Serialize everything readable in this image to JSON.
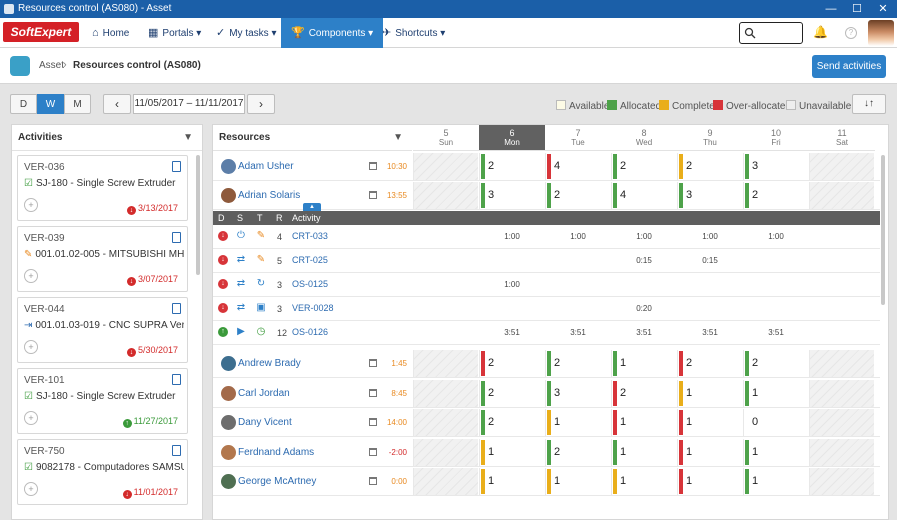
{
  "window": {
    "title": "Resources control (AS080) - Asset",
    "minimize": "—",
    "maximize": "☐",
    "close": "✕"
  },
  "nav": {
    "logo": "SoftExpert",
    "items": [
      {
        "label": "Home",
        "icon": "⌂"
      },
      {
        "label": "Portals ▾",
        "icon": "▦"
      },
      {
        "label": "My tasks ▾",
        "icon": "✓"
      },
      {
        "label": "Components ▾",
        "icon": "🏆"
      },
      {
        "label": "Shortcuts ▾",
        "icon": "✈"
      }
    ]
  },
  "breadcrumb": {
    "parent": "Asset",
    "separator": "›",
    "page": "Resources control (AS080)"
  },
  "actions": {
    "send": "Send activities"
  },
  "toolbar": {
    "views": [
      "D",
      "W",
      "M"
    ],
    "prev": "‹",
    "next": "›",
    "date_range": "11/05/2017 – 11/11/2017",
    "sort": "↓↑"
  },
  "legend": [
    {
      "label": "Available",
      "color": "#fdfbe6"
    },
    {
      "label": "Allocated",
      "color": "#4ea24a"
    },
    {
      "label": "Complete",
      "color": "#e9ae1a"
    },
    {
      "label": "Over-allocated",
      "color": "#d73439"
    },
    {
      "label": "Unavailable",
      "color": "#eeeeee"
    }
  ],
  "activities": {
    "title": "Activities",
    "cards": [
      {
        "id": "VER-036",
        "name": "SJ-180 - Single Screw Extruder",
        "type": "check",
        "date": "3/13/2017",
        "status": "late"
      },
      {
        "id": "VER-039",
        "name": "001.01.02-005 - MITSUBISHI MH-80D",
        "type": "tool",
        "date": "3/07/2017",
        "status": "late"
      },
      {
        "id": "VER-044",
        "name": "001.01.03-019 - CNC SUPRA Vertic...",
        "type": "tree",
        "date": "5/30/2017",
        "status": "late"
      },
      {
        "id": "VER-101",
        "name": "SJ-180 - Single Screw Extruder",
        "type": "check",
        "date": "11/27/2017",
        "status": "ok"
      },
      {
        "id": "VER-750",
        "name": "9082178 - Computadores SAMSUNG",
        "type": "check",
        "date": "11/01/2017",
        "status": "late"
      }
    ]
  },
  "resources": {
    "title": "Resources",
    "days": [
      {
        "num": "5",
        "name": "Sun"
      },
      {
        "num": "6",
        "name": "Mon"
      },
      {
        "num": "7",
        "name": "Tue"
      },
      {
        "num": "8",
        "name": "Wed"
      },
      {
        "num": "9",
        "name": "Thu"
      },
      {
        "num": "10",
        "name": "Fri"
      },
      {
        "num": "11",
        "name": "Sat"
      }
    ],
    "top_rows": [
      {
        "name": "Adam Usher",
        "hours": "10:30",
        "cells": [
          null,
          {
            "v": "2",
            "c": "g"
          },
          {
            "v": "4",
            "c": "r"
          },
          {
            "v": "2",
            "c": "g"
          },
          {
            "v": "2",
            "c": "y"
          },
          {
            "v": "3",
            "c": "g"
          },
          null
        ]
      },
      {
        "name": "Adrian Solaris",
        "hours": "13:55",
        "cells": [
          null,
          {
            "v": "3",
            "c": "g"
          },
          {
            "v": "2",
            "c": "g"
          },
          {
            "v": "4",
            "c": "g"
          },
          {
            "v": "3",
            "c": "g"
          },
          {
            "v": "2",
            "c": "g"
          },
          null
        ]
      }
    ],
    "sub_header": {
      "d": "D",
      "s": "S",
      "t": "T",
      "r": "R",
      "activity": "Activity"
    },
    "sub_rows": [
      {
        "r": "4",
        "activity": "CRT-033",
        "times": [
          "",
          "1:00",
          "1:00",
          "1:00",
          "1:00",
          "1:00",
          ""
        ]
      },
      {
        "r": "5",
        "activity": "CRT-025",
        "times": [
          "",
          "",
          "",
          "0:15",
          "0:15",
          "",
          ""
        ]
      },
      {
        "r": "3",
        "activity": "OS-0125",
        "times": [
          "",
          "1:00",
          "",
          "",
          "",
          "",
          ""
        ]
      },
      {
        "r": "3",
        "activity": "VER-0028",
        "times": [
          "",
          "",
          "",
          "0:20",
          "",
          "",
          ""
        ]
      },
      {
        "r": "12",
        "activity": "OS-0126",
        "times": [
          "",
          "3:51",
          "3:51",
          "3:51",
          "3:51",
          "3:51",
          ""
        ]
      }
    ],
    "bottom_rows": [
      {
        "name": "Andrew Brady",
        "hours": "1:45",
        "cells": [
          null,
          {
            "v": "2",
            "c": "r"
          },
          {
            "v": "2",
            "c": "g"
          },
          {
            "v": "1",
            "c": "g"
          },
          {
            "v": "2",
            "c": "r"
          },
          {
            "v": "2",
            "c": "g"
          },
          null
        ]
      },
      {
        "name": "Carl Jordan",
        "hours": "8:45",
        "cells": [
          null,
          {
            "v": "2",
            "c": "g"
          },
          {
            "v": "3",
            "c": "g"
          },
          {
            "v": "2",
            "c": "r"
          },
          {
            "v": "1",
            "c": "y"
          },
          {
            "v": "1",
            "c": "g"
          },
          null
        ]
      },
      {
        "name": "Dany Vicent",
        "hours": "14:00",
        "cells": [
          null,
          {
            "v": "2",
            "c": "g"
          },
          {
            "v": "1",
            "c": "y"
          },
          {
            "v": "1",
            "c": "r"
          },
          {
            "v": "1",
            "c": "r"
          },
          {
            "v": "0",
            "c": ""
          },
          null
        ]
      },
      {
        "name": "Ferdnand Adams",
        "hours": "-2:00",
        "cells": [
          null,
          {
            "v": "1",
            "c": "y"
          },
          {
            "v": "2",
            "c": "g"
          },
          {
            "v": "1",
            "c": "g"
          },
          {
            "v": "1",
            "c": "r"
          },
          {
            "v": "1",
            "c": "g"
          },
          null
        ]
      },
      {
        "name": "George McArtney",
        "hours": "0:00",
        "cells": [
          null,
          {
            "v": "1",
            "c": "y"
          },
          {
            "v": "1",
            "c": "y"
          },
          {
            "v": "1",
            "c": "y"
          },
          {
            "v": "1",
            "c": "r"
          },
          {
            "v": "1",
            "c": "g"
          },
          null
        ]
      }
    ]
  }
}
